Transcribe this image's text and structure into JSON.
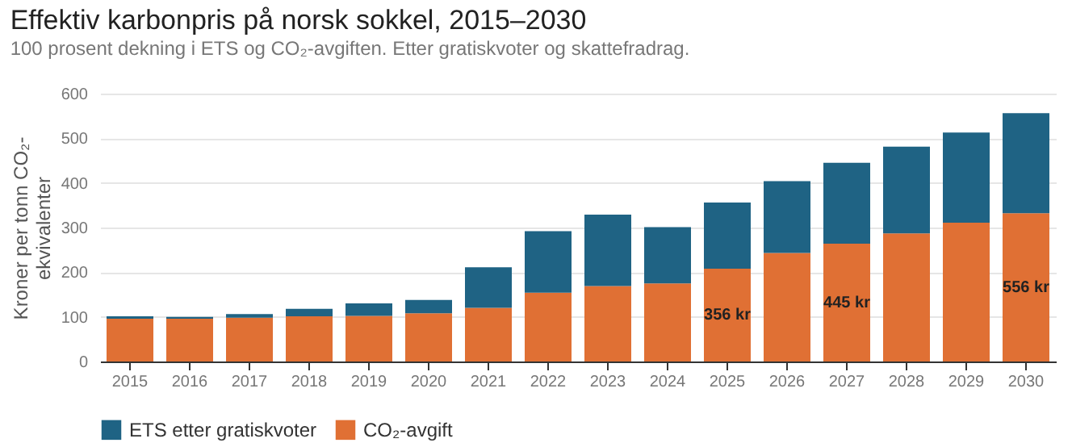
{
  "chart_data": {
    "type": "bar",
    "title": "Effektiv karbonpris på norsk sokkel, 2015–2030",
    "subtitle": "100 prosent dekning i ETS og CO₂-avgiften. Etter gratiskvoter og skattefradrag.",
    "ylabel": "Kroner per tonn CO₂-ekvivalenter",
    "categories": [
      "2015",
      "2016",
      "2017",
      "2018",
      "2019",
      "2020",
      "2021",
      "2022",
      "2023",
      "2024",
      "2025",
      "2026",
      "2027",
      "2028",
      "2029",
      "2030"
    ],
    "stacked": true,
    "series": [
      {
        "name": "CO₂-avgift",
        "color": "#e07034",
        "values": [
          96,
          96,
          98,
          101,
          102,
          108,
          120,
          154,
          169,
          175,
          208,
          243,
          264,
          287,
          311,
          332
        ]
      },
      {
        "name": "ETS etter gratiskvoter",
        "color": "#1f6384",
        "values": [
          5,
          4,
          8,
          17,
          28,
          30,
          91,
          138,
          160,
          126,
          148,
          161,
          181,
          194,
          202,
          224
        ]
      }
    ],
    "ylim": [
      0,
      600
    ],
    "yticks": [
      0,
      100,
      200,
      300,
      400,
      500,
      600
    ],
    "grid": "y",
    "legend": "bottom",
    "totals": [
      null,
      null,
      null,
      null,
      null,
      null,
      null,
      null,
      null,
      null,
      "356 kr",
      null,
      "445 kr",
      null,
      null,
      "556 kr"
    ]
  }
}
